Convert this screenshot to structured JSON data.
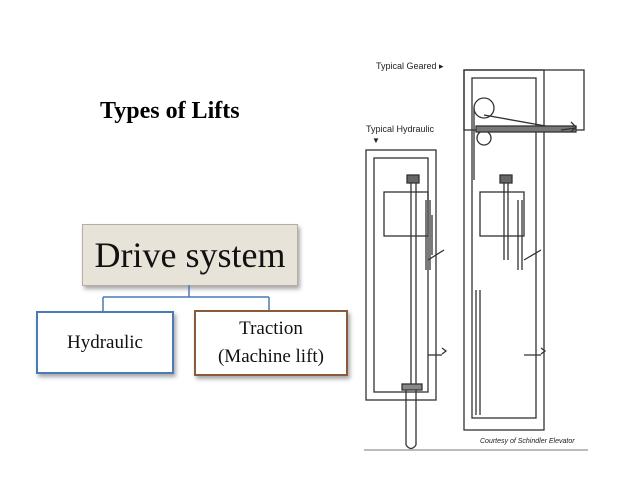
{
  "title": "Types of Lifts",
  "org_chart": {
    "root": "Drive system",
    "children": [
      {
        "label": "Hydraulic"
      },
      {
        "label_line1": "Traction",
        "label_line2": "(Machine lift)"
      }
    ]
  },
  "drawing": {
    "label_geared": "Typical Geared ▸",
    "label_hydraulic": "Typical Hydraulic",
    "label_hydraulic_arrow": "▼",
    "credit": "Courtesy of Schindler Elevator"
  }
}
